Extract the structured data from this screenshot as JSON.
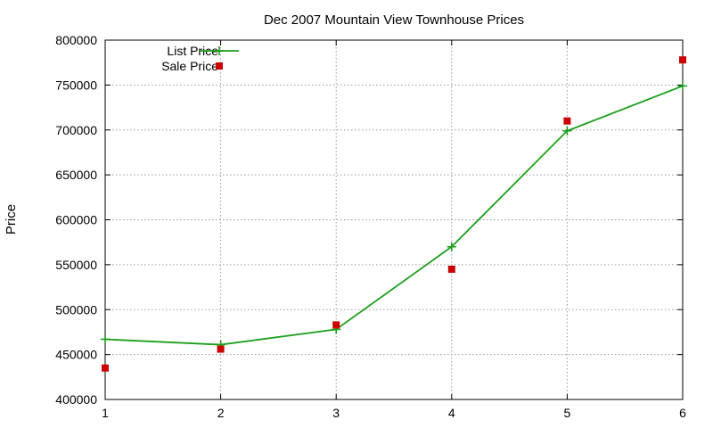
{
  "chart_data": {
    "type": "line",
    "title": "Dec 2007 Mountain View Townhouse Prices",
    "xlabel": "",
    "ylabel": "Price",
    "xlim": [
      1,
      6
    ],
    "ylim": [
      400000,
      800000
    ],
    "x_ticks": [
      1,
      2,
      3,
      4,
      5,
      6
    ],
    "y_ticks": [
      400000,
      450000,
      500000,
      550000,
      600000,
      650000,
      700000,
      750000,
      800000
    ],
    "grid": true,
    "legend_position": "top-left",
    "series": [
      {
        "name": "List Price",
        "style": "linespoints",
        "marker": "plus",
        "color": "#1a9e1a",
        "x": [
          1,
          2,
          3,
          4,
          5,
          6
        ],
        "values": [
          467000,
          461000,
          478000,
          570000,
          699000,
          749000
        ]
      },
      {
        "name": "Sale Price",
        "style": "points",
        "marker": "square",
        "color": "#cc0000",
        "x": [
          1,
          2,
          3,
          4,
          5,
          6
        ],
        "values": [
          435000,
          456000,
          483000,
          545000,
          710000,
          778000
        ]
      }
    ]
  }
}
